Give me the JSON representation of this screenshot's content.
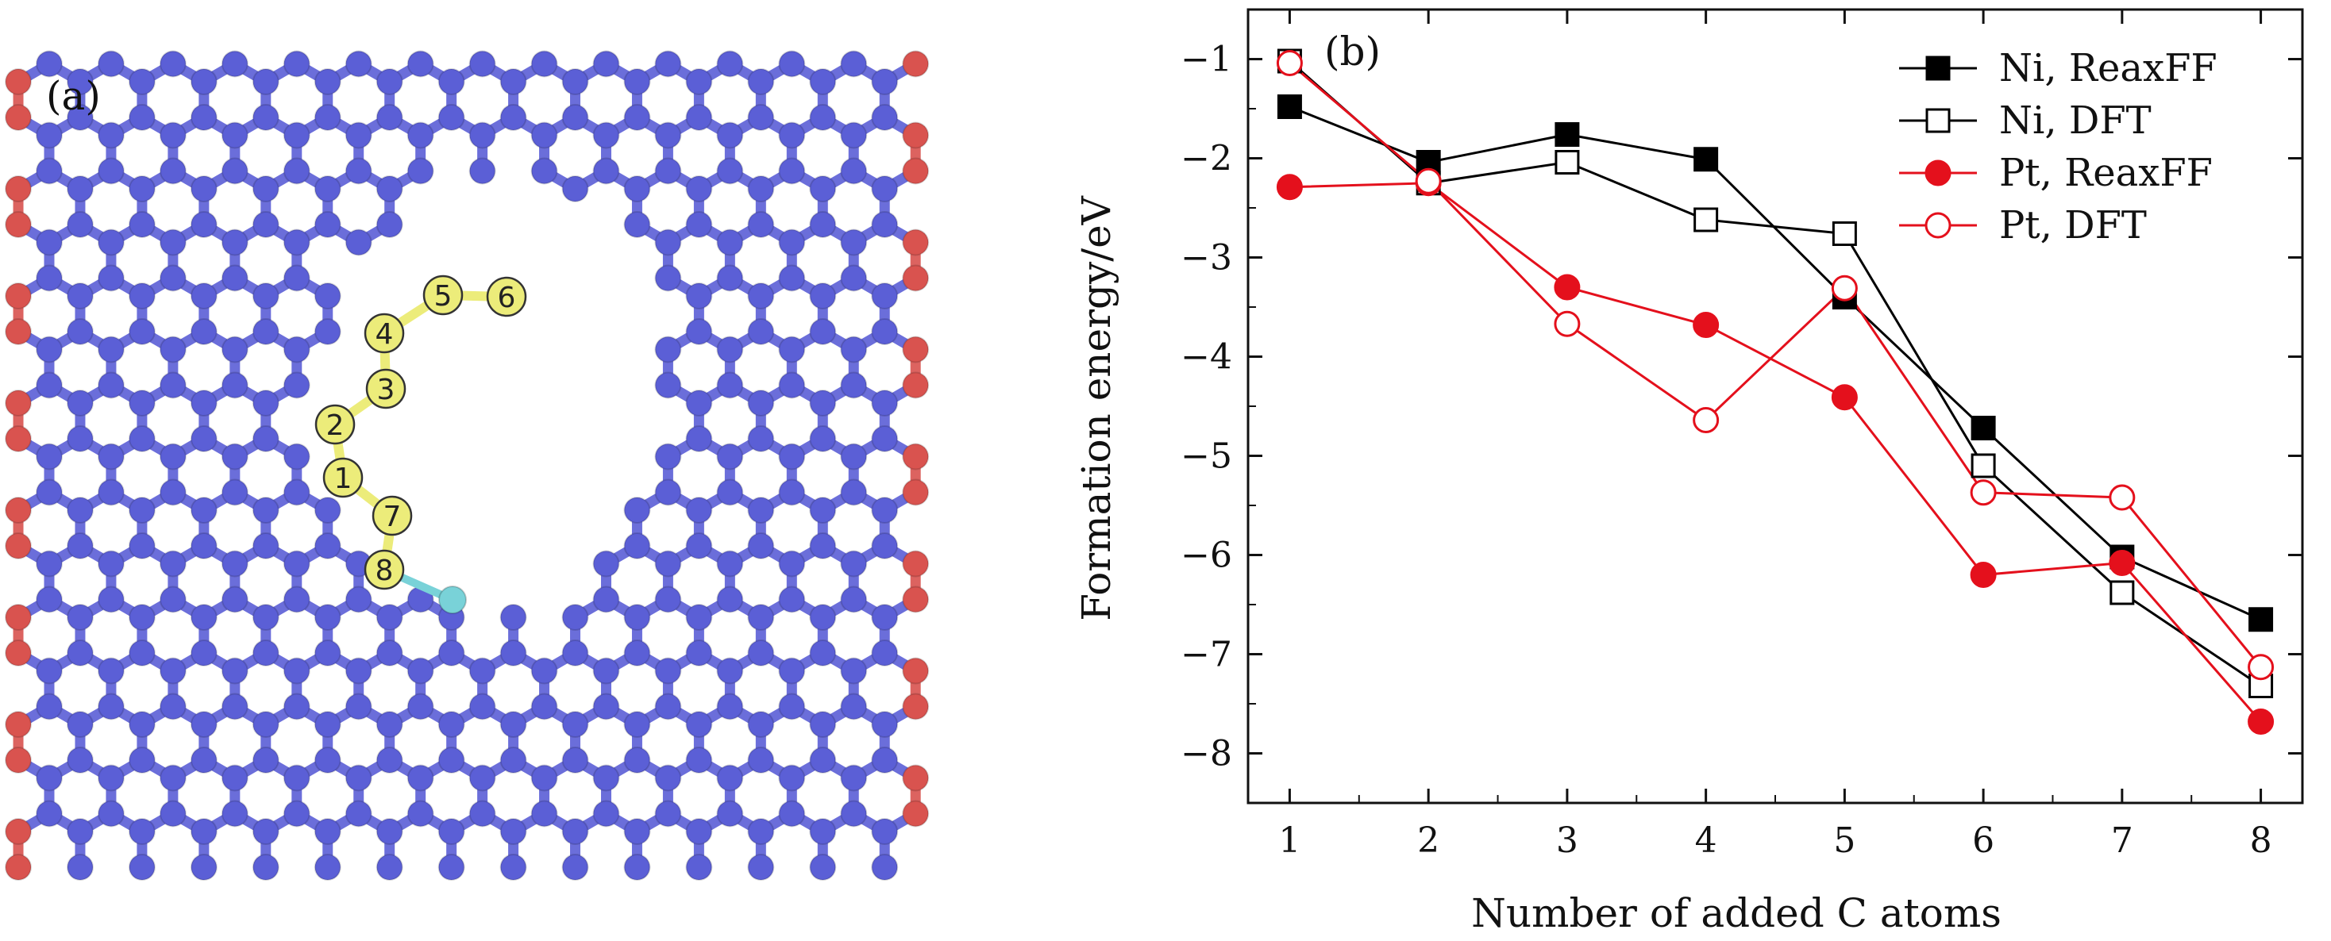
{
  "panels": {
    "a": {
      "label": "(a)",
      "atom_labels": [
        "1",
        "2",
        "3",
        "4",
        "5",
        "6",
        "7",
        "8"
      ],
      "colors": {
        "carbon_lattice": "#5b5fd6",
        "edge_atoms": "#d9534f",
        "added_carbon": "#ecec7a",
        "metal_atom": "#79d2d8"
      }
    },
    "b": {
      "label": "(b)"
    }
  },
  "chart_data": {
    "type": "line",
    "title": "",
    "xlabel": "Number of added C atoms",
    "ylabel": "Formation energy/eV",
    "x": [
      1,
      2,
      3,
      4,
      5,
      6,
      7,
      8
    ],
    "xlim": [
      0.7,
      8.3
    ],
    "ylim": [
      -8.5,
      -0.5
    ],
    "xticks": [
      1,
      2,
      3,
      4,
      5,
      6,
      7,
      8
    ],
    "yticks": [
      -1,
      -2,
      -3,
      -4,
      -5,
      -6,
      -7,
      -8
    ],
    "ytick_labels": [
      "−1",
      "−2",
      "−3",
      "−4",
      "−5",
      "−6",
      "−7",
      "−8"
    ],
    "legend_position": "top-right",
    "series": [
      {
        "name": "Ni, ReaxFF",
        "color": "#000000",
        "marker": "square-filled",
        "values": [
          -1.48,
          -2.04,
          -1.76,
          -2.01,
          -3.4,
          -4.72,
          -6.02,
          -6.65
        ]
      },
      {
        "name": "Ni, DFT",
        "color": "#000000",
        "marker": "square-open",
        "values": [
          -1.02,
          -2.25,
          -2.04,
          -2.62,
          -2.76,
          -5.1,
          -6.38,
          -7.32
        ]
      },
      {
        "name": "Pt, ReaxFF",
        "color": "#e4101c",
        "marker": "circle-filled",
        "values": [
          -2.29,
          -2.25,
          -3.3,
          -3.68,
          -4.41,
          -6.2,
          -6.08,
          -7.68
        ]
      },
      {
        "name": "Pt, DFT",
        "color": "#e4101c",
        "marker": "circle-open",
        "values": [
          -1.04,
          -2.23,
          -3.67,
          -4.64,
          -3.31,
          -5.37,
          -5.42,
          -7.13
        ]
      }
    ]
  }
}
